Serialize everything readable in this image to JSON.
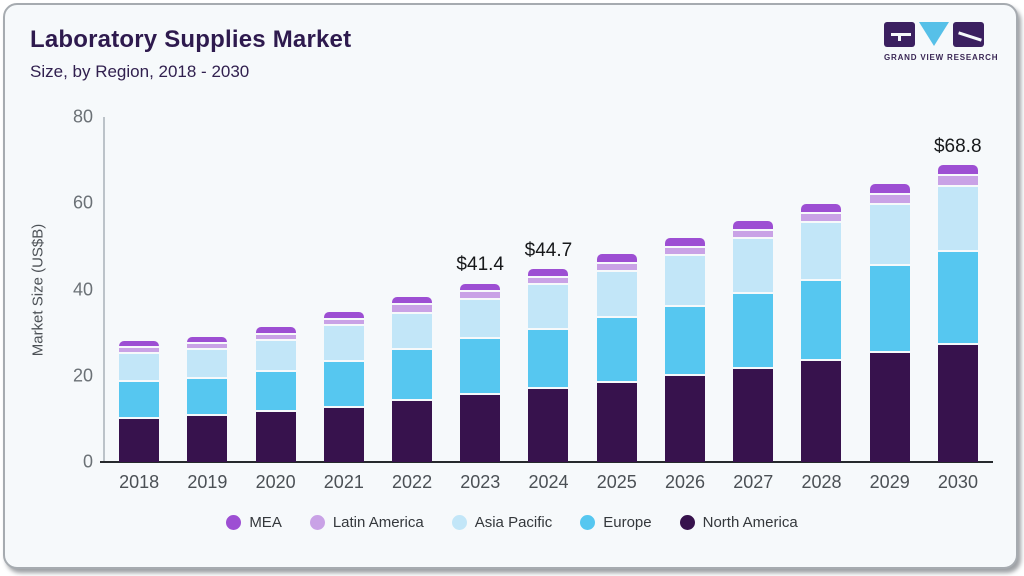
{
  "header": {
    "title": "Laboratory Supplies Market",
    "subtitle": "Size, by Region, 2018 - 2030"
  },
  "logo": {
    "text": "GRAND VIEW RESEARCH"
  },
  "chart_data": {
    "type": "bar",
    "stacked": true,
    "title": "Laboratory Supplies Market Size, by Region, 2018 - 2030",
    "ylabel": "Market Size (US$B)",
    "ylim": [
      0,
      80
    ],
    "yticks": [
      0,
      20,
      40,
      60,
      80
    ],
    "grid": false,
    "legend_position": "bottom",
    "categories": [
      "2018",
      "2019",
      "2020",
      "2021",
      "2022",
      "2023",
      "2024",
      "2025",
      "2026",
      "2027",
      "2028",
      "2029",
      "2030"
    ],
    "series": [
      {
        "name": "North America",
        "color": "#37124d",
        "values": [
          10.5,
          11.2,
          12.0,
          13.0,
          14.6,
          16.1,
          17.4,
          18.8,
          20.5,
          22.1,
          23.9,
          25.7,
          27.6
        ]
      },
      {
        "name": "Europe",
        "color": "#56c7f0",
        "values": [
          8.6,
          8.6,
          9.4,
          10.6,
          11.9,
          12.8,
          13.7,
          15.1,
          15.9,
          17.4,
          18.5,
          20.2,
          21.6
        ]
      },
      {
        "name": "Asia Pacific",
        "color": "#c2e6f8",
        "values": [
          6.3,
          6.6,
          7.2,
          8.5,
          8.4,
          9.1,
          10.3,
          10.7,
          11.8,
          12.6,
          13.4,
          14.2,
          15.1
        ]
      },
      {
        "name": "Latin America",
        "color": "#c9a2e6",
        "values": [
          1.4,
          1.4,
          1.4,
          1.4,
          1.9,
          1.8,
          1.8,
          1.9,
          1.9,
          1.9,
          2.1,
          2.3,
          2.4
        ]
      },
      {
        "name": "MEA",
        "color": "#9d4fd3",
        "values": [
          1.2,
          1.2,
          1.2,
          1.3,
          1.5,
          1.6,
          1.5,
          1.7,
          1.9,
          2.0,
          2.0,
          2.1,
          2.1
        ]
      }
    ],
    "totals": [
      28.0,
      29.0,
      31.2,
      34.8,
      38.3,
      41.4,
      44.7,
      48.2,
      52.0,
      56.0,
      59.9,
      64.5,
      68.8
    ],
    "annotations": [
      {
        "category": "2023",
        "text": "$41.4"
      },
      {
        "category": "2024",
        "text": "$44.7"
      },
      {
        "category": "2030",
        "text": "$68.8"
      }
    ]
  }
}
